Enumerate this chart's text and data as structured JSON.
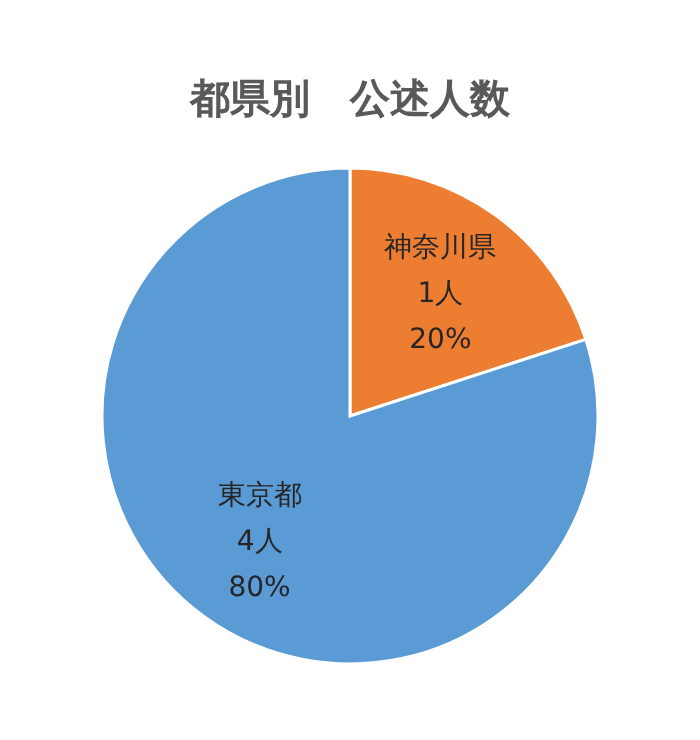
{
  "chart_data": {
    "type": "pie",
    "title": "都県別　公述人数",
    "categories": [
      "神奈川県",
      "東京都"
    ],
    "values": [
      1,
      4
    ],
    "colors": [
      "#ed7d31",
      "#5b9bd5"
    ],
    "value_labels": [
      "1人\n20%",
      "4人\n80%"
    ],
    "legend": false
  }
}
